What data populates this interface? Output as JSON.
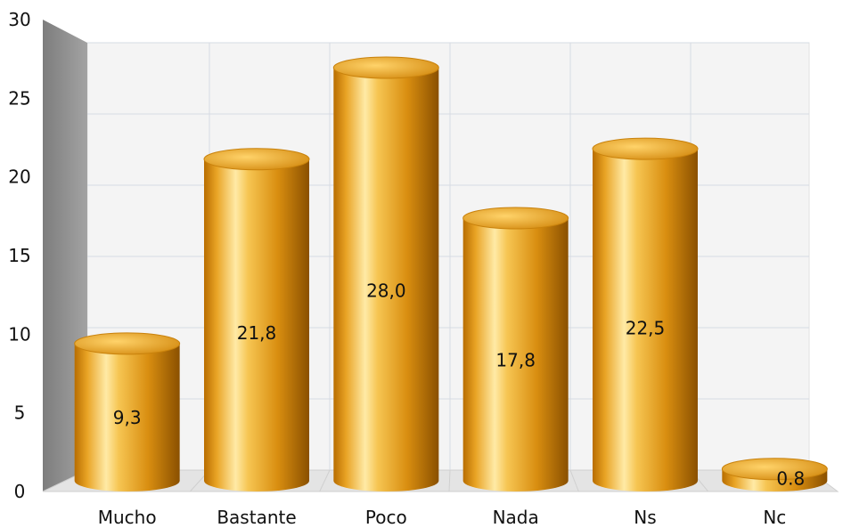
{
  "chart_data": {
    "type": "bar",
    "style": "3d-cylinder",
    "categories": [
      "Mucho",
      "Bastante",
      "Poco",
      "Nada",
      "Ns",
      "Nc"
    ],
    "values": [
      9.3,
      21.8,
      28.0,
      17.8,
      22.5,
      0.8
    ],
    "data_labels": [
      "9,3",
      "21,8",
      "28,0",
      "17,8",
      "22,5",
      "0.8"
    ],
    "ylim": [
      0,
      30
    ],
    "yticks": [
      0,
      5,
      10,
      15,
      20,
      25,
      30
    ],
    "grid": true,
    "legend": "none",
    "colors": {
      "bar_light": "#ffe9a0",
      "bar_mid": "#e8a51c",
      "bar_dark": "#9a5a00",
      "bar_top": "#f0b432",
      "wall_side": "#8c8c8c",
      "wall_back": "#f4f4f4",
      "floor": "#e4e4e4",
      "grid": "#d6dbe3"
    }
  }
}
